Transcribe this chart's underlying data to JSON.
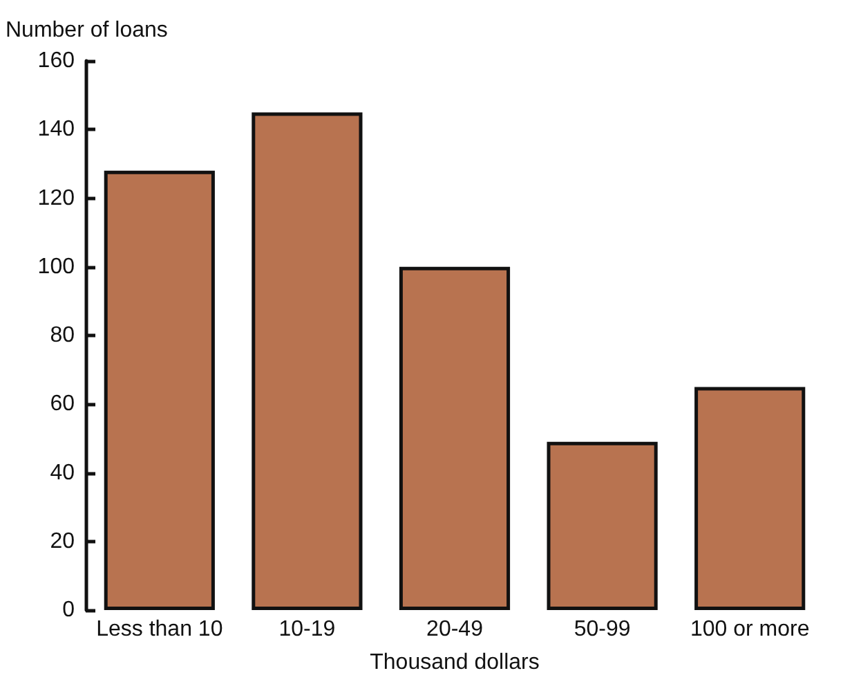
{
  "chart_data": {
    "type": "bar",
    "ylabel": "Number of loans",
    "xlabel": "Thousand dollars",
    "categories": [
      "Less than 10",
      "10-19",
      "20-49",
      "50-99",
      "100 or more"
    ],
    "values": [
      128,
      145,
      100,
      49,
      65
    ],
    "color": "#b87350",
    "ylim": [
      0,
      160
    ],
    "yticks": [
      0,
      20,
      40,
      60,
      80,
      100,
      120,
      140,
      160
    ],
    "grid": false
  }
}
